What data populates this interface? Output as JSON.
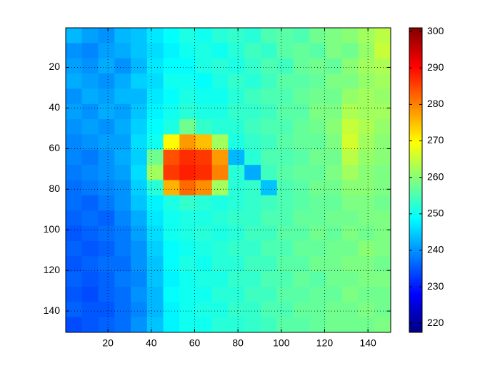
{
  "chart_data": {
    "type": "heatmap",
    "colormap": "jet",
    "grid": true,
    "y_reversed": true,
    "xlim": [
      0.5,
      150.5
    ],
    "ylim": [
      0.5,
      150.5
    ],
    "xticks": [
      20,
      40,
      60,
      80,
      100,
      120,
      140
    ],
    "yticks": [
      20,
      40,
      60,
      80,
      100,
      120,
      140
    ],
    "colorbar": {
      "clim": [
        217.5,
        301
      ],
      "ticks": [
        220,
        230,
        240,
        250,
        260,
        270,
        280,
        290,
        300
      ]
    },
    "values": [
      [
        243,
        241,
        240,
        243,
        244,
        247,
        249,
        251,
        250,
        252,
        253,
        252,
        255,
        256,
        255,
        258,
        259,
        260,
        262,
        264
      ],
      [
        240,
        239,
        241,
        242,
        244,
        246,
        248,
        250,
        251,
        250,
        252,
        254,
        253,
        256,
        257,
        256,
        259,
        258,
        261,
        265
      ],
      [
        241,
        240,
        242,
        240,
        243,
        247,
        249,
        249,
        251,
        252,
        251,
        253,
        255,
        254,
        257,
        258,
        257,
        260,
        262,
        263
      ],
      [
        242,
        241,
        240,
        242,
        245,
        246,
        250,
        250,
        249,
        251,
        253,
        252,
        254,
        256,
        256,
        257,
        259,
        259,
        261,
        262
      ],
      [
        240,
        242,
        241,
        243,
        243,
        247,
        249,
        251,
        250,
        250,
        252,
        254,
        255,
        255,
        257,
        258,
        258,
        261,
        262,
        261
      ],
      [
        241,
        240,
        242,
        241,
        244,
        248,
        250,
        252,
        251,
        251,
        253,
        253,
        254,
        256,
        256,
        259,
        259,
        263,
        262,
        262
      ],
      [
        240,
        241,
        240,
        242,
        245,
        249,
        251,
        258,
        253,
        252,
        252,
        254,
        255,
        255,
        257,
        258,
        260,
        265,
        263,
        261
      ],
      [
        239,
        240,
        241,
        241,
        246,
        250,
        270,
        278,
        275,
        262,
        251,
        253,
        254,
        256,
        257,
        257,
        259,
        266,
        262,
        260
      ],
      [
        239,
        238,
        240,
        242,
        245,
        258,
        284,
        287,
        286,
        278,
        243,
        252,
        255,
        255,
        256,
        258,
        258,
        264,
        261,
        260
      ],
      [
        238,
        239,
        240,
        241,
        246,
        262,
        286,
        288,
        287,
        280,
        252,
        242,
        254,
        256,
        257,
        257,
        259,
        262,
        260,
        259
      ],
      [
        237,
        238,
        239,
        240,
        245,
        252,
        276,
        282,
        279,
        262,
        252,
        253,
        244,
        255,
        256,
        258,
        258,
        260,
        260,
        259
      ],
      [
        237,
        236,
        238,
        240,
        244,
        248,
        251,
        253,
        252,
        251,
        252,
        253,
        254,
        255,
        256,
        257,
        257,
        259,
        259,
        258
      ],
      [
        236,
        237,
        236,
        239,
        242,
        247,
        250,
        251,
        251,
        252,
        253,
        253,
        255,
        255,
        257,
        257,
        258,
        258,
        259,
        259
      ],
      [
        235,
        236,
        237,
        238,
        241,
        246,
        250,
        251,
        252,
        251,
        252,
        254,
        254,
        256,
        256,
        258,
        257,
        259,
        258,
        259
      ],
      [
        236,
        235,
        236,
        238,
        240,
        245,
        249,
        250,
        251,
        252,
        253,
        253,
        255,
        255,
        257,
        257,
        258,
        258,
        260,
        259
      ],
      [
        235,
        236,
        237,
        237,
        240,
        244,
        249,
        251,
        250,
        252,
        252,
        254,
        254,
        256,
        256,
        258,
        258,
        259,
        259,
        258
      ],
      [
        236,
        235,
        236,
        238,
        239,
        244,
        248,
        250,
        251,
        251,
        253,
        253,
        255,
        255,
        257,
        256,
        258,
        258,
        259,
        259
      ],
      [
        235,
        234,
        236,
        237,
        240,
        243,
        249,
        250,
        250,
        252,
        252,
        254,
        254,
        256,
        256,
        257,
        257,
        259,
        258,
        258
      ],
      [
        236,
        235,
        235,
        237,
        239,
        243,
        248,
        250,
        251,
        251,
        253,
        253,
        255,
        255,
        257,
        257,
        258,
        258,
        259,
        258
      ],
      [
        234,
        235,
        236,
        237,
        240,
        244,
        248,
        250,
        250,
        252,
        252,
        253,
        254,
        256,
        256,
        257,
        258,
        258,
        258,
        259
      ]
    ]
  }
}
